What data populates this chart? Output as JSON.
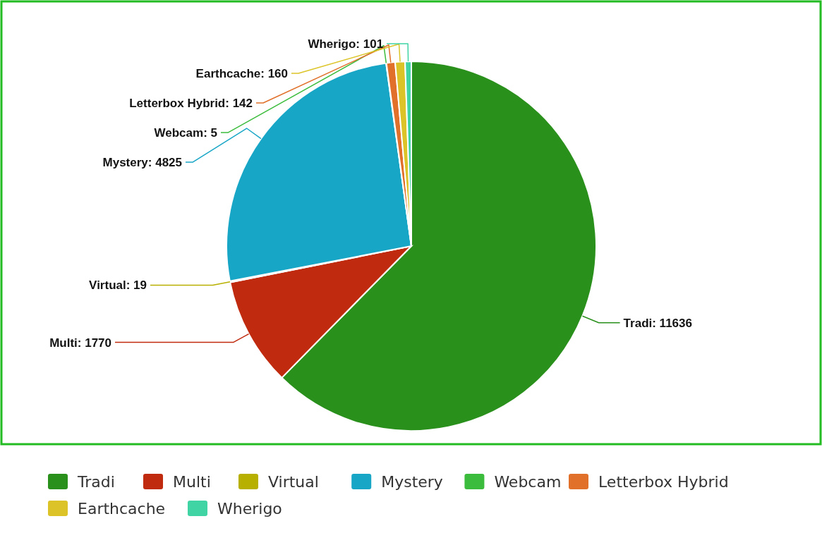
{
  "chart_data": {
    "type": "pie",
    "categories": [
      "Tradi",
      "Multi",
      "Virtual",
      "Mystery",
      "Webcam",
      "Letterbox Hybrid",
      "Earthcache",
      "Wherigo"
    ],
    "values": [
      11636,
      1770,
      19,
      4825,
      5,
      142,
      160,
      101
    ],
    "colors": [
      "#2a901c",
      "#c02a0e",
      "#b8b000",
      "#18a6c6",
      "#3cbc3c",
      "#e0702a",
      "#dcc428",
      "#40d4a4"
    ],
    "value_labels": [
      "Tradi: 11636",
      "Multi: 1770",
      "Virtual: 19",
      "Mystery: 4825",
      "Webcam: 5",
      "Letterbox Hybrid: 142",
      "Earthcache: 160",
      "Wherigo: 101"
    ],
    "legend": "bottom"
  }
}
